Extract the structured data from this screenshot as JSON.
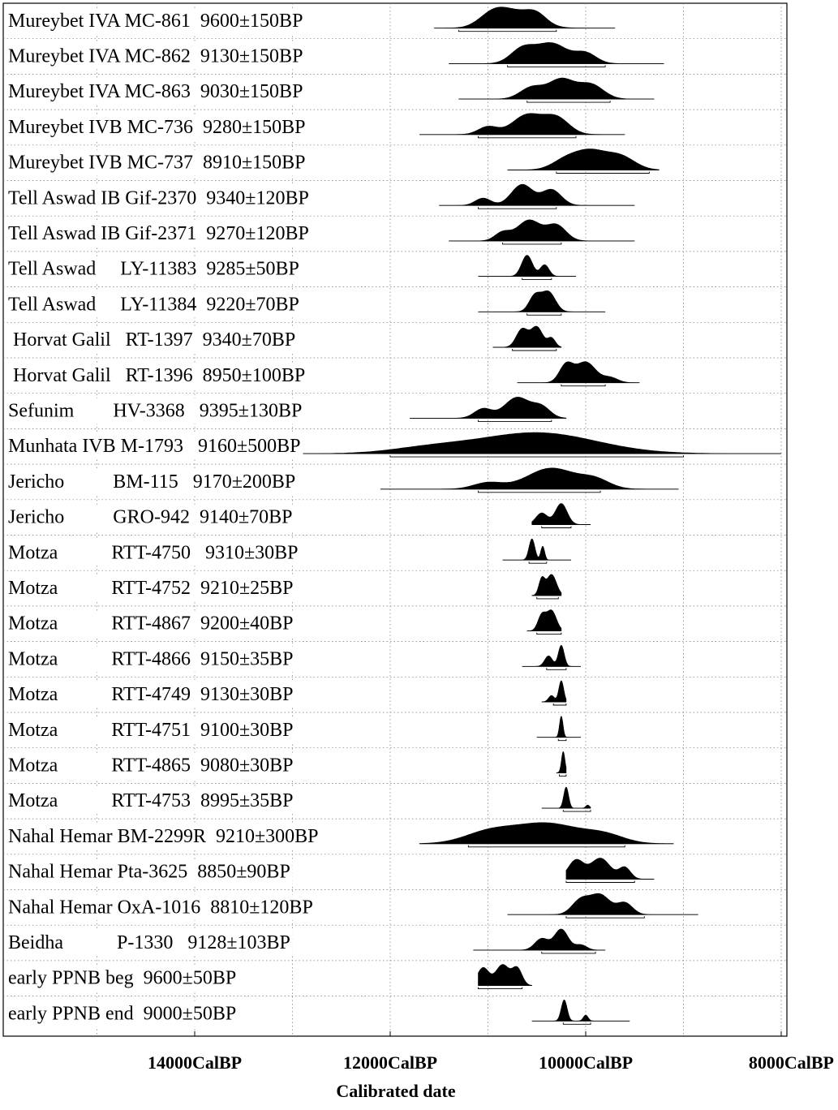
{
  "chart_data": {
    "type": "area",
    "xlabel": "Calibrated date",
    "x_axis": {
      "unit": "CalBP",
      "direction": "descending-left-to-right",
      "range": [
        14950,
        7950
      ],
      "ticks": [
        {
          "value": 14000,
          "label": "14000CalBP"
        },
        {
          "value": 12000,
          "label": "12000CalBP"
        },
        {
          "value": 10000,
          "label": "10000CalBP"
        },
        {
          "value": 8000,
          "label": "8000CalBP"
        }
      ]
    },
    "grid": true,
    "series": [
      {
        "label": "Mureybet IVA MC-861  9600±150BP",
        "peaks": [
          [
            10950,
            140,
            0.8
          ],
          [
            10700,
            200,
            1.0
          ],
          [
            10500,
            100,
            0.5
          ]
        ],
        "range": [
          11300,
          10300
        ],
        "tails": [
          11550,
          9700
        ]
      },
      {
        "label": "Mureybet IVA MC-862  9130±150BP",
        "peaks": [
          [
            10650,
            120,
            0.7
          ],
          [
            10350,
            160,
            1.0
          ],
          [
            10000,
            110,
            0.5
          ]
        ],
        "range": [
          10800,
          9800
        ],
        "tails": [
          11400,
          9200
        ]
      },
      {
        "label": "Mureybet IVA MC-863  9030±150BP",
        "peaks": [
          [
            10550,
            120,
            0.6
          ],
          [
            10250,
            130,
            1.0
          ],
          [
            9950,
            130,
            0.75
          ]
        ],
        "range": [
          10600,
          9750
        ],
        "tails": [
          11300,
          9300
        ]
      },
      {
        "label": "Mureybet IVB MC-736  9280±150BP",
        "peaks": [
          [
            11000,
            100,
            0.4
          ],
          [
            10600,
            150,
            1.0
          ],
          [
            10300,
            130,
            0.85
          ]
        ],
        "range": [
          11100,
          10100
        ],
        "tails": [
          11700,
          9600
        ]
      },
      {
        "label": "Mureybet IVB MC-737  8910±150BP",
        "peaks": [
          [
            10200,
            140,
            0.6
          ],
          [
            9950,
            150,
            1.0
          ],
          [
            9650,
            150,
            0.8
          ]
        ],
        "range": [
          10300,
          9350
        ],
        "tails": [
          10800,
          9250
        ]
      },
      {
        "label": "Tell Aswad IB Gif-2370  9340±120BP",
        "peaks": [
          [
            11050,
            80,
            0.35
          ],
          [
            10650,
            110,
            1.0
          ],
          [
            10350,
            100,
            0.75
          ]
        ],
        "range": [
          11100,
          10300
        ],
        "tails": [
          11500,
          9500
        ]
      },
      {
        "label": "Tell Aswad IB Gif-2371  9270±120BP",
        "peaks": [
          [
            10850,
            80,
            0.4
          ],
          [
            10580,
            120,
            1.0
          ],
          [
            10300,
            100,
            0.75
          ]
        ],
        "range": [
          10850,
          10250
        ],
        "tails": [
          11400,
          9500
        ]
      },
      {
        "label": "Tell Aswad     LY-11383  9285±50BP",
        "peaks": [
          [
            10600,
            55,
            1.0
          ],
          [
            10420,
            45,
            0.55
          ]
        ],
        "range": [
          10650,
          10350
        ],
        "tails": [
          11100,
          10100
        ]
      },
      {
        "label": "Tell Aswad     LY-11384  9220±70BP",
        "peaks": [
          [
            10520,
            60,
            0.8
          ],
          [
            10380,
            70,
            1.0
          ]
        ],
        "range": [
          10600,
          10250
        ],
        "tails": [
          11100,
          9800
        ]
      },
      {
        "label": " Horvat Galil   RT-1397  9340±70BP",
        "peaks": [
          [
            10650,
            60,
            0.9
          ],
          [
            10500,
            60,
            1.0
          ],
          [
            10350,
            40,
            0.45
          ]
        ],
        "range": [
          10750,
          10300
        ],
        "tails": [
          10950,
          10250
        ]
      },
      {
        "label": " Horvat Galil   RT-1396  8950±100BP",
        "peaks": [
          [
            10200,
            70,
            0.85
          ],
          [
            10000,
            100,
            1.0
          ],
          [
            9750,
            80,
            0.25
          ]
        ],
        "range": [
          10250,
          9800
        ],
        "tails": [
          10700,
          9450
        ]
      },
      {
        "label": "Sefunim        HV-3368   9395±130BP",
        "peaks": [
          [
            11050,
            90,
            0.45
          ],
          [
            10700,
            130,
            1.0
          ],
          [
            10450,
            90,
            0.5
          ]
        ],
        "range": [
          11100,
          10350
        ],
        "tails": [
          11800,
          10200
        ]
      },
      {
        "label": "Munhata IVB M-1793   9160±500BP",
        "peaks": [
          [
            10500,
            600,
            1.0
          ],
          [
            11600,
            400,
            0.25
          ]
        ],
        "range": [
          12000,
          9000
        ],
        "tails": [
          14950,
          8000
        ]
      },
      {
        "label": "Jericho          BM-115   9170±200BP",
        "peaks": [
          [
            11000,
            150,
            0.3
          ],
          [
            10350,
            250,
            1.0
          ],
          [
            9900,
            150,
            0.4
          ]
        ],
        "range": [
          11100,
          9850
        ],
        "tails": [
          12100,
          9050
        ]
      },
      {
        "label": "Jericho          GRO-942  9140±70BP",
        "peaks": [
          [
            10450,
            60,
            0.55
          ],
          [
            10250,
            60,
            1.0
          ]
        ],
        "range": [
          10450,
          10150
        ],
        "tails": [
          10550,
          9950
        ]
      },
      {
        "label": "Motza           RTT-4750   9310±30BP",
        "peaks": [
          [
            10550,
            30,
            1.0
          ],
          [
            10440,
            20,
            0.65
          ]
        ],
        "range": [
          10580,
          10400
        ],
        "tails": [
          10850,
          10150
        ]
      },
      {
        "label": "Motza           RTT-4752  9210±25BP",
        "peaks": [
          [
            10450,
            30,
            0.75
          ],
          [
            10350,
            50,
            1.0
          ]
        ],
        "range": [
          10500,
          10280
        ],
        "tails": [
          10550,
          10250
        ]
      },
      {
        "label": "Motza           RTT-4867  9200±40BP",
        "peaks": [
          [
            10450,
            40,
            0.75
          ],
          [
            10350,
            50,
            1.0
          ]
        ],
        "range": [
          10500,
          10250
        ],
        "tails": [
          10600,
          10250
        ]
      },
      {
        "label": "Motza           RTT-4866  9150±35BP",
        "peaks": [
          [
            10380,
            40,
            0.5
          ],
          [
            10250,
            30,
            1.0
          ]
        ],
        "range": [
          10400,
          10200
        ],
        "tails": [
          10650,
          10050
        ]
      },
      {
        "label": "Motza           RTT-4749  9130±30BP",
        "peaks": [
          [
            10350,
            30,
            0.3
          ],
          [
            10250,
            25,
            1.0
          ]
        ],
        "range": [
          10330,
          10200
        ],
        "tails": [
          10450,
          10200
        ]
      },
      {
        "label": "Motza           RTT-4751  9100±30BP",
        "peaks": [
          [
            10250,
            18,
            1.0
          ]
        ],
        "range": [
          10280,
          10200
        ],
        "tails": [
          10500,
          10050
        ]
      },
      {
        "label": "Motza           RTT-4865  9080±30BP",
        "peaks": [
          [
            10230,
            18,
            1.0
          ]
        ],
        "range": [
          10270,
          10200
        ],
        "tails": [
          10300,
          10200
        ]
      },
      {
        "label": "Motza           RTT-4753  8995±35BP",
        "peaks": [
          [
            10200,
            25,
            1.0
          ],
          [
            9980,
            20,
            0.15
          ]
        ],
        "range": [
          10230,
          9950
        ],
        "tails": [
          10450,
          9950
        ]
      },
      {
        "label": "Nahal Hemar BM-2299R  9210±300BP",
        "peaks": [
          [
            11000,
            250,
            0.5
          ],
          [
            10400,
            350,
            1.0
          ],
          [
            9800,
            200,
            0.35
          ]
        ],
        "range": [
          11200,
          9600
        ],
        "tails": [
          11700,
          9100
        ]
      },
      {
        "label": "Nahal Hemar Pta-3625  8850±90BP",
        "peaks": [
          [
            10100,
            80,
            0.9
          ],
          [
            9850,
            100,
            1.0
          ],
          [
            9600,
            60,
            0.55
          ]
        ],
        "range": [
          10200,
          9500
        ],
        "tails": [
          10200,
          9300
        ]
      },
      {
        "label": "Nahal Hemar OxA-1016  8810±120BP",
        "peaks": [
          [
            10050,
            90,
            0.75
          ],
          [
            9850,
            100,
            1.0
          ],
          [
            9600,
            80,
            0.6
          ]
        ],
        "range": [
          10200,
          9400
        ],
        "tails": [
          10800,
          8850
        ]
      },
      {
        "label": "Beidha           P-1330   9128±103BP",
        "peaks": [
          [
            10450,
            70,
            0.55
          ],
          [
            10250,
            70,
            1.0
          ],
          [
            10050,
            60,
            0.25
          ]
        ],
        "range": [
          10450,
          9900
        ],
        "tails": [
          11150,
          9800
        ]
      },
      {
        "label": "early PPNB beg  9600±50BP",
        "peaks": [
          [
            11050,
            60,
            0.85
          ],
          [
            10850,
            70,
            1.0
          ],
          [
            10700,
            50,
            0.8
          ]
        ],
        "range": [
          11100,
          10650
        ],
        "tails": [
          11100,
          10550
        ]
      },
      {
        "label": "early PPNB end  9000±50BP",
        "peaks": [
          [
            10220,
            30,
            1.0
          ],
          [
            10000,
            25,
            0.28
          ]
        ],
        "range": [
          10230,
          9950
        ],
        "tails": [
          10550,
          9550
        ]
      }
    ]
  }
}
